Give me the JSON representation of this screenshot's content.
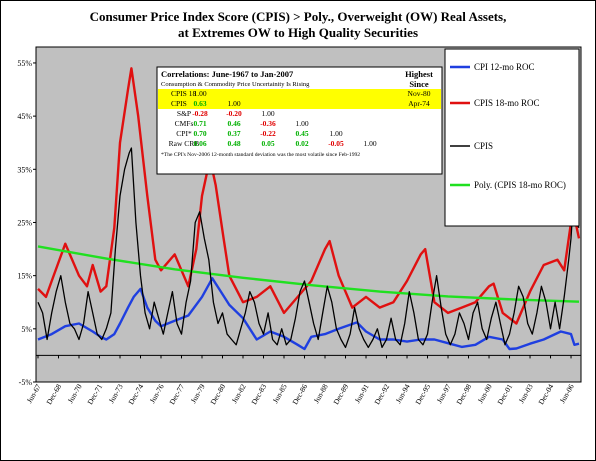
{
  "chart_data": {
    "type": "line",
    "title_line1": "Consumer Price Index Score (CPIS) > Poly., Overweight (OW) Real Assets,",
    "title_line2": "at Extremes OW to High Quality Securities",
    "xlabel": "",
    "ylabel": "",
    "ylim": [
      -5,
      58
    ],
    "y_ticks": [
      -5,
      5,
      15,
      25,
      35,
      45,
      55
    ],
    "y_tick_labels": [
      "-5%",
      "5%",
      "15%",
      "25%",
      "35%",
      "45%",
      "55%"
    ],
    "x_range": [
      "1967-06",
      "2007-01"
    ],
    "x_tick_labels": [
      "Jun-67",
      "Dec-68",
      "Jun-70",
      "Dec-71",
      "Jun-73",
      "Dec-74",
      "Jun-76",
      "Dec-77",
      "Jun-79",
      "Dec-80",
      "Jun-82",
      "Dec-83",
      "Jun-85",
      "Dec-86",
      "Jun-88",
      "Dec-89",
      "Jun-91",
      "Dec-92",
      "Jun-94",
      "Dec-95",
      "Jun-97",
      "Dec-98",
      "Jun-00",
      "Dec-01",
      "Jun-03",
      "Dec-04",
      "Jun-06"
    ],
    "grid": false,
    "plot_background": "#c0c0c0",
    "legend_position": "right",
    "series": [
      {
        "name": "CPI 12-mo ROC",
        "color": "#1f3fe0",
        "points": [
          [
            "1967-06",
            3
          ],
          [
            "1968-06",
            4
          ],
          [
            "1969-06",
            5.5
          ],
          [
            "1970-06",
            6
          ],
          [
            "1971-06",
            4.5
          ],
          [
            "1972-01",
            3.5
          ],
          [
            "1972-06",
            3
          ],
          [
            "1973-01",
            4
          ],
          [
            "1973-06",
            6
          ],
          [
            "1974-01",
            9
          ],
          [
            "1974-06",
            11
          ],
          [
            "1974-12",
            12.5
          ],
          [
            "1975-06",
            9
          ],
          [
            "1976-01",
            6.5
          ],
          [
            "1976-06",
            5.5
          ],
          [
            "1977-06",
            6.5
          ],
          [
            "1978-06",
            7.5
          ],
          [
            "1979-06",
            11
          ],
          [
            "1980-03",
            14.5
          ],
          [
            "1980-09",
            12.5
          ],
          [
            "1981-06",
            9.5
          ],
          [
            "1982-06",
            7
          ],
          [
            "1983-06",
            3
          ],
          [
            "1984-06",
            4.5
          ],
          [
            "1985-06",
            3.5
          ],
          [
            "1986-06",
            2
          ],
          [
            "1986-12",
            1.2
          ],
          [
            "1987-06",
            3.5
          ],
          [
            "1988-06",
            4
          ],
          [
            "1989-06",
            5
          ],
          [
            "1990-10",
            6.2
          ],
          [
            "1991-06",
            4.5
          ],
          [
            "1992-06",
            3
          ],
          [
            "1993-06",
            3
          ],
          [
            "1994-06",
            2.6
          ],
          [
            "1995-06",
            3
          ],
          [
            "1996-06",
            3
          ],
          [
            "1997-06",
            2.3
          ],
          [
            "1998-06",
            1.6
          ],
          [
            "1999-06",
            2
          ],
          [
            "2000-06",
            3.5
          ],
          [
            "2001-06",
            3
          ],
          [
            "2001-12",
            1.2
          ],
          [
            "2002-06",
            1.3
          ],
          [
            "2003-06",
            2.2
          ],
          [
            "2004-06",
            3
          ],
          [
            "2005-09",
            4.5
          ],
          [
            "2006-06",
            4
          ],
          [
            "2006-09",
            2
          ],
          [
            "2007-01",
            2.2
          ]
        ]
      },
      {
        "name": "CPIS 18-mo ROC",
        "color": "#e01010",
        "points": [
          [
            "1967-06",
            12.5
          ],
          [
            "1968-01",
            11
          ],
          [
            "1968-06",
            14
          ],
          [
            "1969-06",
            21
          ],
          [
            "1970-06",
            15
          ],
          [
            "1971-01",
            13
          ],
          [
            "1971-06",
            17
          ],
          [
            "1972-01",
            12
          ],
          [
            "1972-06",
            13
          ],
          [
            "1973-01",
            24
          ],
          [
            "1973-06",
            40
          ],
          [
            "1974-01",
            50
          ],
          [
            "1974-04",
            54
          ],
          [
            "1974-10",
            45
          ],
          [
            "1975-06",
            30
          ],
          [
            "1976-01",
            18
          ],
          [
            "1976-06",
            16
          ],
          [
            "1977-06",
            19
          ],
          [
            "1978-06",
            13
          ],
          [
            "1979-01",
            20
          ],
          [
            "1979-06",
            30
          ],
          [
            "1980-01",
            37
          ],
          [
            "1980-06",
            32
          ],
          [
            "1981-01",
            22
          ],
          [
            "1981-06",
            15
          ],
          [
            "1982-06",
            10
          ],
          [
            "1983-06",
            11
          ],
          [
            "1984-06",
            13
          ],
          [
            "1985-06",
            8
          ],
          [
            "1986-06",
            11
          ],
          [
            "1987-06",
            14
          ],
          [
            "1988-06",
            20
          ],
          [
            "1988-10",
            21.5
          ],
          [
            "1989-06",
            15
          ],
          [
            "1990-06",
            9
          ],
          [
            "1991-06",
            11
          ],
          [
            "1992-06",
            9
          ],
          [
            "1993-06",
            10
          ],
          [
            "1994-06",
            14
          ],
          [
            "1995-06",
            19
          ],
          [
            "1995-10",
            20
          ],
          [
            "1996-06",
            10
          ],
          [
            "1997-06",
            8
          ],
          [
            "1998-06",
            9
          ],
          [
            "1999-06",
            10
          ],
          [
            "2000-06",
            13
          ],
          [
            "2000-10",
            13.5
          ],
          [
            "2001-06",
            8
          ],
          [
            "2002-06",
            6
          ],
          [
            "2003-06",
            12
          ],
          [
            "2004-06",
            17
          ],
          [
            "2005-06",
            18
          ],
          [
            "2005-12",
            16
          ],
          [
            "2006-06",
            25
          ],
          [
            "2006-08",
            27
          ],
          [
            "2007-01",
            22
          ]
        ]
      },
      {
        "name": "CPIS",
        "color": "#000000",
        "points": [
          [
            "1967-06",
            10
          ],
          [
            "1967-10",
            8
          ],
          [
            "1968-02",
            3
          ],
          [
            "1968-06",
            8
          ],
          [
            "1968-10",
            12
          ],
          [
            "1969-02",
            15
          ],
          [
            "1969-06",
            10
          ],
          [
            "1969-10",
            6
          ],
          [
            "1970-02",
            5
          ],
          [
            "1970-06",
            3
          ],
          [
            "1970-10",
            6
          ],
          [
            "1971-02",
            12
          ],
          [
            "1971-06",
            8
          ],
          [
            "1971-10",
            4
          ],
          [
            "1972-02",
            3
          ],
          [
            "1972-06",
            5
          ],
          [
            "1972-10",
            8
          ],
          [
            "1973-02",
            20
          ],
          [
            "1973-06",
            30
          ],
          [
            "1973-10",
            35
          ],
          [
            "1974-02",
            38
          ],
          [
            "1974-04",
            39
          ],
          [
            "1974-08",
            25
          ],
          [
            "1974-12",
            15
          ],
          [
            "1975-04",
            8
          ],
          [
            "1975-08",
            5
          ],
          [
            "1975-12",
            10
          ],
          [
            "1976-04",
            7
          ],
          [
            "1976-08",
            4
          ],
          [
            "1976-12",
            8
          ],
          [
            "1977-04",
            12
          ],
          [
            "1977-08",
            6
          ],
          [
            "1977-12",
            4
          ],
          [
            "1978-04",
            10
          ],
          [
            "1978-08",
            14
          ],
          [
            "1978-12",
            25
          ],
          [
            "1979-04",
            27
          ],
          [
            "1979-08",
            22
          ],
          [
            "1979-12",
            18
          ],
          [
            "1980-04",
            10
          ],
          [
            "1980-08",
            6
          ],
          [
            "1980-12",
            8
          ],
          [
            "1981-04",
            4
          ],
          [
            "1981-08",
            3
          ],
          [
            "1981-12",
            2
          ],
          [
            "1982-04",
            5
          ],
          [
            "1982-08",
            8
          ],
          [
            "1982-12",
            12
          ],
          [
            "1983-04",
            10
          ],
          [
            "1983-08",
            6
          ],
          [
            "1983-12",
            4
          ],
          [
            "1984-04",
            8
          ],
          [
            "1984-08",
            3
          ],
          [
            "1984-12",
            2
          ],
          [
            "1985-04",
            5
          ],
          [
            "1985-08",
            2
          ],
          [
            "1985-12",
            3
          ],
          [
            "1986-04",
            7
          ],
          [
            "1986-08",
            12
          ],
          [
            "1986-12",
            14
          ],
          [
            "1987-04",
            10
          ],
          [
            "1987-08",
            6
          ],
          [
            "1987-12",
            3
          ],
          [
            "1988-04",
            8
          ],
          [
            "1988-08",
            13
          ],
          [
            "1988-12",
            10
          ],
          [
            "1989-04",
            5
          ],
          [
            "1989-08",
            3
          ],
          [
            "1989-12",
            1.5
          ],
          [
            "1990-04",
            4
          ],
          [
            "1990-08",
            9
          ],
          [
            "1990-12",
            5
          ],
          [
            "1991-04",
            3
          ],
          [
            "1991-08",
            1.5
          ],
          [
            "1991-12",
            3
          ],
          [
            "1992-04",
            5
          ],
          [
            "1992-08",
            1.5
          ],
          [
            "1992-12",
            3
          ],
          [
            "1993-04",
            7
          ],
          [
            "1993-08",
            3
          ],
          [
            "1993-12",
            2
          ],
          [
            "1994-04",
            6
          ],
          [
            "1994-08",
            12
          ],
          [
            "1994-12",
            8
          ],
          [
            "1995-04",
            3
          ],
          [
            "1995-08",
            2
          ],
          [
            "1995-12",
            4
          ],
          [
            "1996-04",
            10
          ],
          [
            "1996-08",
            15
          ],
          [
            "1996-12",
            9
          ],
          [
            "1997-04",
            4
          ],
          [
            "1997-08",
            2
          ],
          [
            "1997-12",
            4
          ],
          [
            "1998-04",
            8
          ],
          [
            "1998-08",
            6
          ],
          [
            "1998-12",
            3
          ],
          [
            "1999-04",
            8
          ],
          [
            "1999-08",
            10
          ],
          [
            "1999-12",
            5
          ],
          [
            "2000-04",
            3
          ],
          [
            "2000-08",
            7
          ],
          [
            "2000-12",
            10
          ],
          [
            "2001-04",
            6
          ],
          [
            "2001-08",
            2
          ],
          [
            "2001-12",
            4
          ],
          [
            "2002-04",
            8
          ],
          [
            "2002-08",
            13
          ],
          [
            "2002-12",
            11
          ],
          [
            "2003-04",
            6
          ],
          [
            "2003-08",
            4
          ],
          [
            "2003-12",
            8
          ],
          [
            "2004-04",
            13
          ],
          [
            "2004-08",
            10
          ],
          [
            "2004-12",
            5
          ],
          [
            "2005-04",
            10
          ],
          [
            "2005-08",
            5
          ],
          [
            "2005-12",
            11
          ],
          [
            "2006-04",
            18
          ],
          [
            "2006-06",
            22
          ],
          [
            "2006-08",
            29
          ],
          [
            "2006-10",
            25
          ],
          [
            "2007-01",
            24
          ]
        ]
      },
      {
        "name": "Poly. (CPIS 18-mo ROC)",
        "color": "#20e020",
        "points": [
          [
            "1967-06",
            20.5
          ],
          [
            "1972-06",
            18.2
          ],
          [
            "1977-06",
            16.2
          ],
          [
            "1982-06",
            14.6
          ],
          [
            "1987-06",
            13.2
          ],
          [
            "1992-06",
            12
          ],
          [
            "1997-06",
            11.1
          ],
          [
            "2002-06",
            10.5
          ],
          [
            "2007-01",
            10.1
          ]
        ]
      }
    ],
    "correlation_table": {
      "title": "Correlations: June-1967 to Jan-2007",
      "subtitle": "Consumption & Commodity Price Uncertainity Is Rising",
      "highest_header_line1": "Highest",
      "highest_header_line2": "Since",
      "rows": [
        {
          "label": "CPIS 18",
          "cells": [
            "1.00",
            "",
            "",
            "",
            "",
            ""
          ],
          "since": "Nov-80",
          "highlight": true
        },
        {
          "label": "CPIS",
          "cells": [
            "0.63",
            "1.00",
            "",
            "",
            "",
            ""
          ],
          "since": "Apr-74",
          "highlight": true
        },
        {
          "label": "S&P",
          "cells": [
            "-0.28",
            "-0.20",
            "1.00",
            "",
            "",
            ""
          ],
          "since": "",
          "highlight": false
        },
        {
          "label": "CMFs",
          "cells": [
            "0.71",
            "0.46",
            "-0.36",
            "1.00",
            "",
            ""
          ],
          "since": "",
          "highlight": false
        },
        {
          "label": "CPI*",
          "cells": [
            "0.70",
            "0.37",
            "-0.22",
            "0.45",
            "1.00",
            ""
          ],
          "since": "",
          "highlight": false
        },
        {
          "label": "Raw CRB",
          "cells": [
            "0.06",
            "0.48",
            "0.05",
            "0.02",
            "-0.05",
            "1.00"
          ],
          "since": "",
          "highlight": false
        }
      ],
      "footnote": "*The CPI's Nov-2006 12-month standard deviation was the most volatile since Feb-1992"
    }
  }
}
